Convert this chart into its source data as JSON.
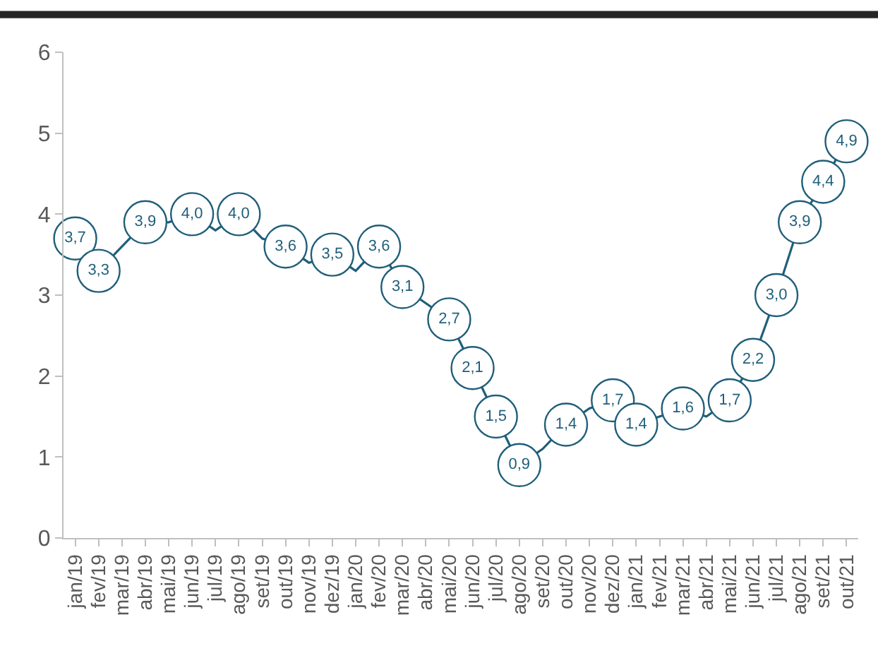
{
  "chart_data": {
    "type": "line",
    "categories": [
      "jan/19",
      "fev/19",
      "mar/19",
      "abr/19",
      "mai/19",
      "jun/19",
      "jul/19",
      "ago/19",
      "set/19",
      "out/19",
      "nov/19",
      "dez/19",
      "jan/20",
      "fev/20",
      "mar/20",
      "abr/20",
      "mai/20",
      "jun/20",
      "jul/20",
      "ago/20",
      "set/20",
      "out/20",
      "nov/20",
      "dez/20",
      "jan/21",
      "fev/21",
      "mar/21",
      "abr/21",
      "mai/21",
      "jun/21",
      "jul/21",
      "ago/21",
      "set/21",
      "out/21"
    ],
    "series": [
      {
        "color": "#1f5f7a",
        "values": [
          3.7,
          3.3,
          3.6,
          3.9,
          3.9,
          4.0,
          3.8,
          4.0,
          3.7,
          3.6,
          3.4,
          3.5,
          3.3,
          3.6,
          3.1,
          2.9,
          2.7,
          2.1,
          1.5,
          0.9,
          1.1,
          1.4,
          1.6,
          1.7,
          1.4,
          1.5,
          1.6,
          1.5,
          1.7,
          2.2,
          3.0,
          3.9,
          4.4,
          4.9
        ],
        "value_labels": [
          "3,7",
          "3,3",
          null,
          "3,9",
          null,
          "4,0",
          null,
          "4,0",
          null,
          "3,6",
          null,
          "3,5",
          null,
          "3,6",
          "3,1",
          null,
          "2,7",
          "2,1",
          "1,5",
          "0,9",
          null,
          "1,4",
          null,
          "1,7",
          "1,4",
          null,
          "1,6",
          null,
          "1,7",
          "2,2",
          "3,0",
          "3,9",
          "4,4",
          "4,9"
        ]
      }
    ],
    "ylim": [
      0,
      6
    ],
    "yticks": [
      0,
      1,
      2,
      3,
      4,
      5,
      6
    ]
  }
}
